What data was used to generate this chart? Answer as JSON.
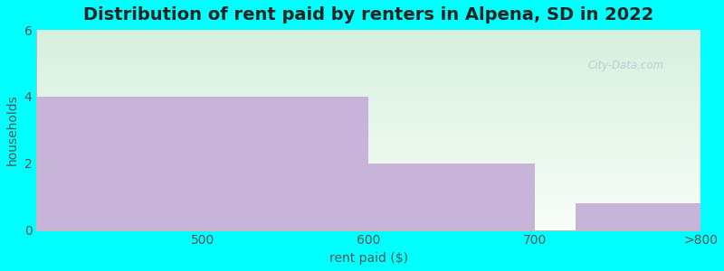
{
  "title": "Distribution of rent paid by renters in Alpena, SD in 2022",
  "xlabel": "rent paid ($)",
  "ylabel": "households",
  "bar_color": "#c8b4d8",
  "xtick_labels": [
    "500",
    "600",
    "700",
    ">800"
  ],
  "ylim": [
    0,
    6
  ],
  "ytick_positions": [
    0,
    2,
    4,
    6
  ],
  "xlim": [
    0,
    4
  ],
  "bg_outer": "#00FFFF",
  "bg_inner_top_left": "#d6f0df",
  "bg_inner_bottom_right": "#f8fef8",
  "title_fontsize": 14,
  "axis_label_fontsize": 10,
  "tick_fontsize": 10,
  "watermark_text": "City-Data.com",
  "bars": [
    {
      "x_start": 0,
      "x_end": 2,
      "height": 4
    },
    {
      "x_start": 2,
      "x_end": 3,
      "height": 2
    },
    {
      "x_start": 3,
      "x_end": 3,
      "height": 0
    },
    {
      "x_start": 3.25,
      "x_end": 4,
      "height": 0.8
    }
  ],
  "xtick_positions": [
    1,
    2,
    3,
    4
  ]
}
